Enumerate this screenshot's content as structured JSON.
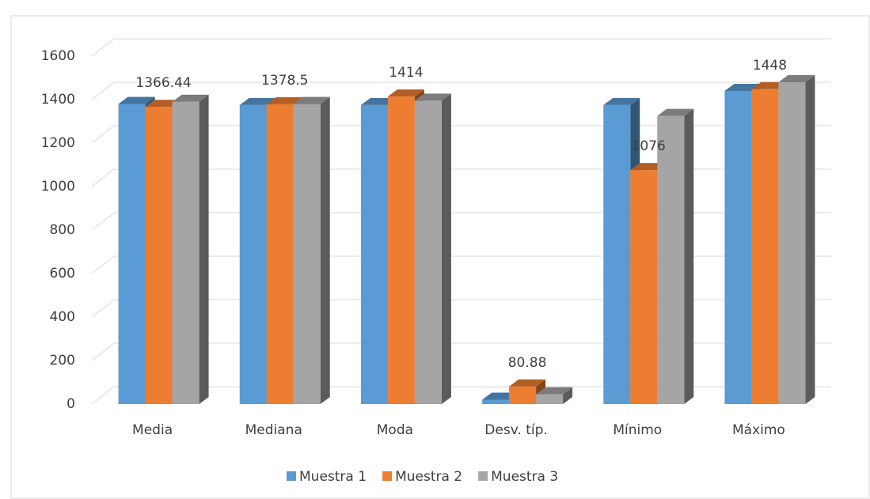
{
  "chart_data": {
    "type": "bar3d",
    "categories": [
      "Media",
      "Mediana",
      "Moda",
      "Desv. típ.",
      "Mínimo",
      "Máximo"
    ],
    "series": [
      {
        "name": "Muestra 1",
        "color": "#5b9bd5",
        "values": [
          1380,
          1375,
          1375,
          20,
          1375,
          1440
        ]
      },
      {
        "name": "Muestra 2",
        "color": "#ed7d31",
        "values": [
          1366.44,
          1378.5,
          1414,
          80.88,
          1076,
          1448
        ],
        "data_labels": true
      },
      {
        "name": "Muestra 3",
        "color": "#a5a5a5",
        "values": [
          1390,
          1380,
          1395,
          45,
          1325,
          1480
        ]
      }
    ],
    "ylim": [
      0,
      1600
    ],
    "yticks": [
      0,
      200,
      400,
      600,
      800,
      1000,
      1200,
      1400,
      1600
    ],
    "grid": true,
    "legend": "bottom"
  }
}
